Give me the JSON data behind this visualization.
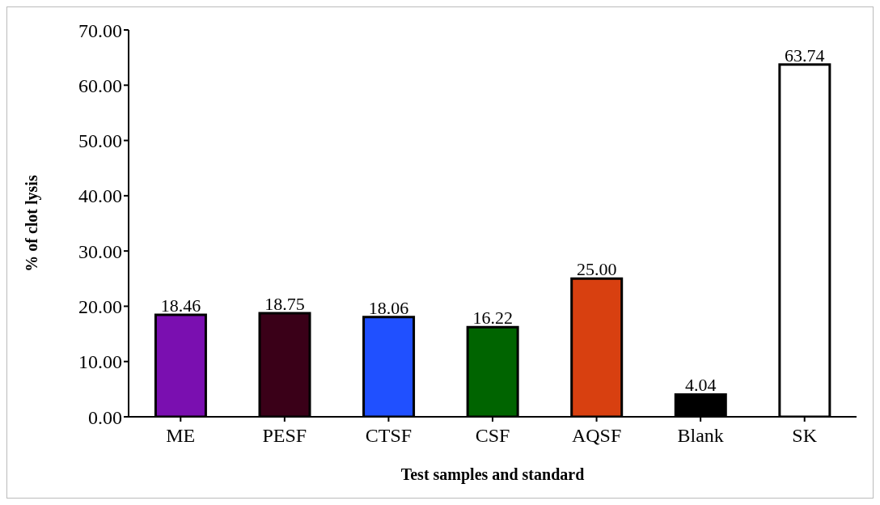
{
  "chart_data": {
    "type": "bar",
    "xlabel": "Test samples and standard",
    "ylabel": "% of clot lysis",
    "categories": [
      "ME",
      "PESF",
      "CTSF",
      "CSF",
      "AQSF",
      "Blank",
      "SK"
    ],
    "values": [
      18.46,
      18.75,
      18.06,
      16.22,
      25.0,
      4.04,
      63.74
    ],
    "colors": [
      "#7a0fb0",
      "#3a0018",
      "#2050ff",
      "#006400",
      "#d84010",
      "#000000",
      "#ffffff"
    ],
    "value_labels": [
      "18.46",
      "18.75",
      "18.06",
      "16.22",
      "25.00",
      "4.04",
      "63.74"
    ],
    "ylim": [
      0,
      70
    ],
    "yticks": [
      {
        "value": 0,
        "label": "0.00"
      },
      {
        "value": 10,
        "label": "10.00"
      },
      {
        "value": 20,
        "label": "20.00"
      },
      {
        "value": 30,
        "label": "30.00"
      },
      {
        "value": 40,
        "label": "40.00"
      },
      {
        "value": 50,
        "label": "50.00"
      },
      {
        "value": 60,
        "label": "60.00"
      },
      {
        "value": 70,
        "label": "70.00"
      }
    ],
    "grid": false,
    "legend": false
  }
}
